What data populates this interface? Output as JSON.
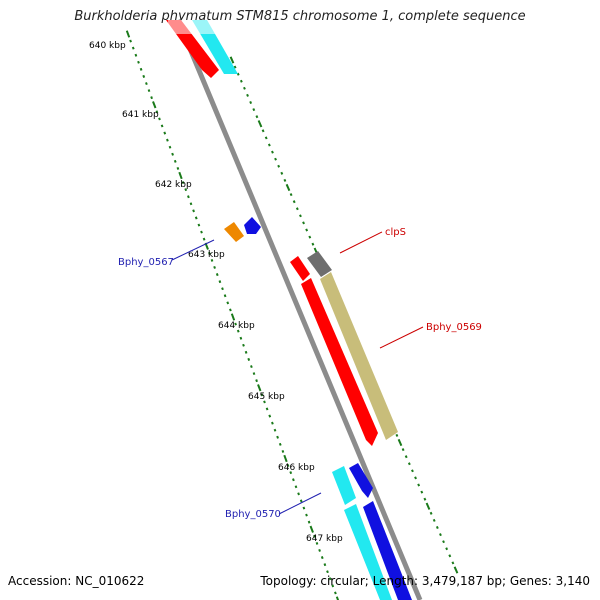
{
  "title": "Burkholderia phymatum STM815 chromosome 1, complete sequence",
  "footer": {
    "accession": "Accession: NC_010622",
    "stats": "Topology: circular; Length: 3,479,187 bp; Genes: 3,140"
  },
  "scale_labels": [
    "640 kbp",
    "641 kbp",
    "642 kbp",
    "643 kbp",
    "644 kbp",
    "645 kbp",
    "646 kbp",
    "647 kbp"
  ],
  "gene_labels": {
    "clpS": "clpS",
    "Bphy_0569": "Bphy_0569",
    "Bphy_0567": "Bphy_0567",
    "Bphy_0570": "Bphy_0570"
  },
  "colors": {
    "backbone": "#8c8c8c",
    "tick": "#1a7a1a",
    "forward_label": "#cc0000",
    "reverse_label": "#1f1fb0",
    "red": "#ff0000",
    "khaki": "#c8bd7a",
    "gray": "#6e6e6e",
    "cyan": "#22e8f0",
    "blue": "#1010e0",
    "orange": "#ee8800"
  }
}
